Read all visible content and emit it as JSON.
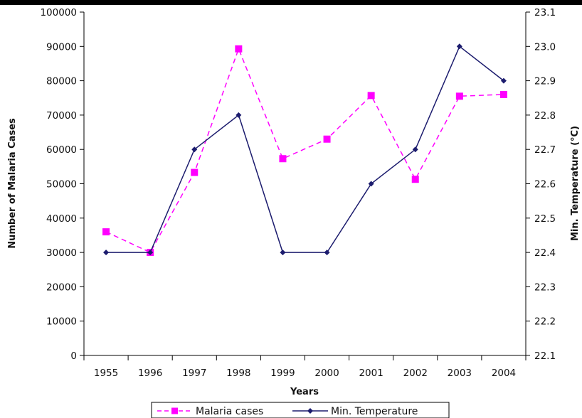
{
  "chart_data": {
    "type": "line",
    "title": "",
    "xlabel": "Years",
    "ylabel": "Number of Malaria Cases",
    "y2label": "Min. Temperature (°C)",
    "categories": [
      "1955",
      "1996",
      "1997",
      "1998",
      "1999",
      "2000",
      "2001",
      "2002",
      "2003",
      "2004"
    ],
    "ylim": [
      0,
      100000
    ],
    "y_ticks": [
      "0",
      "10000",
      "20000",
      "30000",
      "40000",
      "50000",
      "60000",
      "70000",
      "80000",
      "90000",
      "100000"
    ],
    "y2lim": [
      22.1,
      23.1
    ],
    "y2_ticks": [
      "22.1",
      "22.2",
      "22.3",
      "22.4",
      "22.5",
      "22.6",
      "22.7",
      "22.8",
      "22.9",
      "23.0",
      "23.1"
    ],
    "grid": false,
    "legend_position": "bottom",
    "series": [
      {
        "name": "Malaria cases",
        "axis": "left",
        "color": "#ff00ff",
        "line_style": "dashed",
        "marker": "square",
        "values": [
          36000,
          30000,
          53300,
          89300,
          57300,
          63000,
          75700,
          51300,
          75500,
          76000
        ]
      },
      {
        "name": "Min. Temperature",
        "axis": "right",
        "color": "#1c1c6e",
        "line_style": "solid",
        "marker": "diamond",
        "values": [
          22.4,
          22.4,
          22.7,
          22.8,
          22.4,
          22.4,
          22.6,
          22.7,
          23.0,
          22.9
        ]
      }
    ]
  }
}
